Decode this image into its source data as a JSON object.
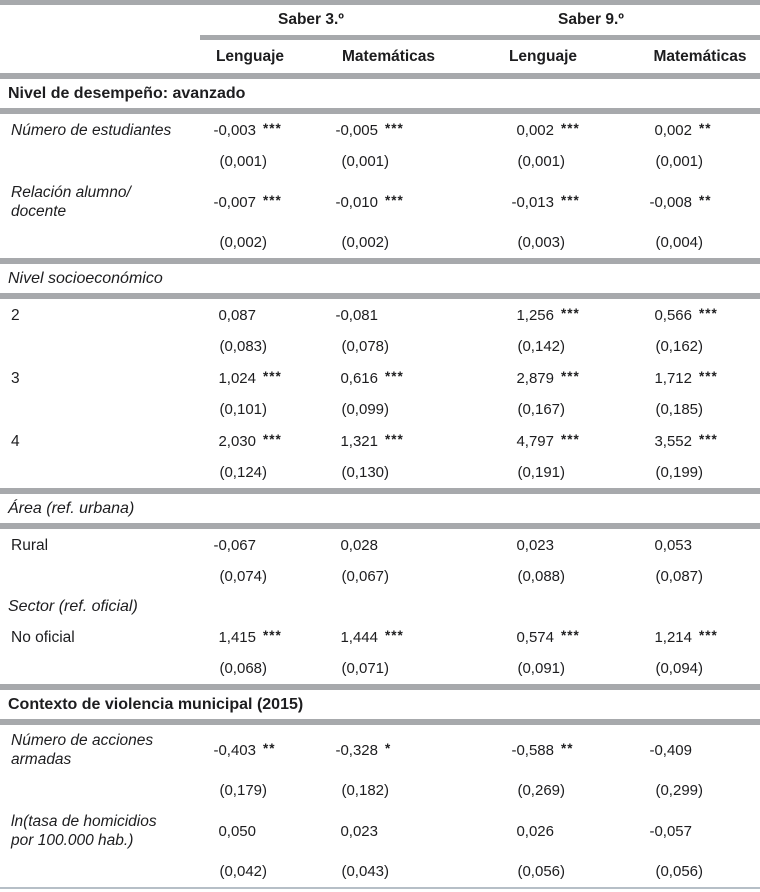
{
  "colors": {
    "rule_gray": "#a7a9ac",
    "bottom_rule": "#b6bfc7",
    "text": "#1d1d1f"
  },
  "table": {
    "group_headers": [
      "Saber 3.º",
      "Saber 9.º"
    ],
    "column_headers": [
      "Lenguaje",
      "Matemáticas",
      "Lenguaje",
      "Matemáticas"
    ],
    "significance_legend": [
      "*",
      "**",
      "***"
    ],
    "rows": [
      {
        "type": "section",
        "weight": "bold",
        "rules": true,
        "label": "Nivel de desempeño: avanzado"
      },
      {
        "type": "var",
        "italic": true,
        "label_lines": [
          "Número de estudiantes"
        ],
        "coefs": [
          "-0,003",
          "-0,005",
          "0,002",
          "0,002"
        ],
        "stars": [
          "***",
          "***",
          "***",
          "**"
        ],
        "se": [
          "(0,001)",
          "(0,001)",
          "(0,001)",
          "(0,001)"
        ]
      },
      {
        "type": "var",
        "italic": true,
        "label_lines": [
          "Relación alumno/",
          "docente"
        ],
        "coefs": [
          "-0,007",
          "-0,010",
          "-0,013",
          "-0,008"
        ],
        "stars": [
          "***",
          "***",
          "***",
          "**"
        ],
        "se": [
          "(0,002)",
          "(0,002)",
          "(0,003)",
          "(0,004)"
        ]
      },
      {
        "type": "section",
        "weight": "italic",
        "rules": true,
        "label": "Nivel socioeconómico"
      },
      {
        "type": "var",
        "italic": false,
        "label_lines": [
          "2"
        ],
        "coefs": [
          "0,087",
          "-0,081",
          "1,256",
          "0,566"
        ],
        "stars": [
          "",
          "",
          "***",
          "***"
        ],
        "se": [
          "(0,083)",
          "(0,078)",
          "(0,142)",
          "(0,162)"
        ]
      },
      {
        "type": "var",
        "italic": false,
        "label_lines": [
          "3"
        ],
        "coefs": [
          "1,024",
          "0,616",
          "2,879",
          "1,712"
        ],
        "stars": [
          "***",
          "***",
          "***",
          "***"
        ],
        "se": [
          "(0,101)",
          "(0,099)",
          "(0,167)",
          "(0,185)"
        ]
      },
      {
        "type": "var",
        "italic": false,
        "label_lines": [
          "4"
        ],
        "coefs": [
          "2,030",
          "1,321",
          "4,797",
          "3,552"
        ],
        "stars": [
          "***",
          "***",
          "***",
          "***"
        ],
        "se": [
          "(0,124)",
          "(0,130)",
          "(0,191)",
          "(0,199)"
        ]
      },
      {
        "type": "section",
        "weight": "italic",
        "rules": true,
        "label": "Área (ref. urbana)"
      },
      {
        "type": "var",
        "italic": false,
        "label_lines": [
          "Rural"
        ],
        "coefs": [
          "-0,067",
          "0,028",
          "0,023",
          "0,053"
        ],
        "stars": [
          "",
          "",
          "",
          ""
        ],
        "se": [
          "(0,074)",
          "(0,067)",
          "(0,088)",
          "(0,087)"
        ]
      },
      {
        "type": "section",
        "weight": "italic",
        "rules": false,
        "label": "Sector (ref. oficial)"
      },
      {
        "type": "var",
        "italic": false,
        "label_lines": [
          "No oficial"
        ],
        "coefs": [
          "1,415",
          "1,444",
          "0,574",
          "1,214"
        ],
        "stars": [
          "***",
          "***",
          "***",
          "***"
        ],
        "se": [
          "(0,068)",
          "(0,071)",
          "(0,091)",
          "(0,094)"
        ]
      },
      {
        "type": "section",
        "weight": "bold",
        "rules": true,
        "label": "Contexto de violencia municipal (2015)"
      },
      {
        "type": "var",
        "italic": true,
        "label_lines": [
          "Número de acciones",
          "armadas"
        ],
        "coefs": [
          "-0,403",
          "-0,328",
          "-0,588",
          "-0,409"
        ],
        "stars": [
          "**",
          "*",
          "**",
          ""
        ],
        "se": [
          "(0,179)",
          "(0,182)",
          "(0,269)",
          "(0,299)"
        ]
      },
      {
        "type": "var",
        "italic": true,
        "label_lines": [
          "ln(tasa de homicidios",
          "por 100.000 hab.)"
        ],
        "coefs": [
          "0,050",
          "0,023",
          "0,026",
          "-0,057"
        ],
        "stars": [
          "",
          "",
          "",
          ""
        ],
        "se": [
          "(0,042)",
          "(0,043)",
          "(0,056)",
          "(0,056)"
        ]
      }
    ]
  }
}
